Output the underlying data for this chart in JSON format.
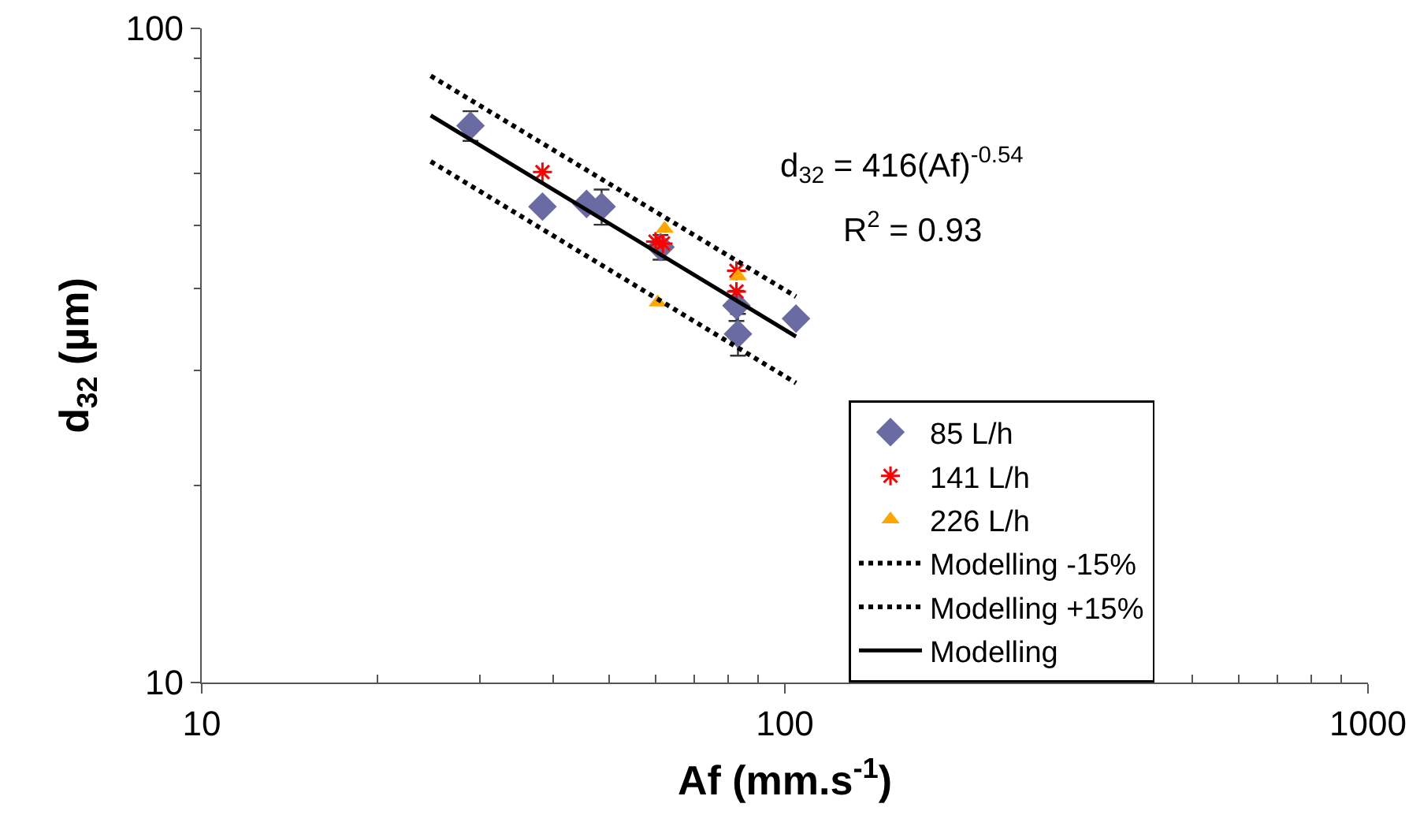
{
  "chart_data": {
    "type": "scatter",
    "xlabel": "Af (mm.s$^{-1}$)",
    "ylabel": "d$_{32}$ (µm)",
    "log": "xy",
    "xlim": [
      10,
      1000
    ],
    "ylim": [
      10,
      100
    ],
    "xticks": [
      10,
      100,
      1000
    ],
    "yticks": [
      10,
      100
    ],
    "legend": "bottom right",
    "annotations": [
      "d$_{32}$ = 416(Af)$^{-0.54}$",
      "R$^{2}$ = 0.93"
    ],
    "series": [
      {
        "name": "85 L/h",
        "marker": "diamond",
        "color": "#6b6ba3",
        "x": [
          28.9,
          38.4,
          45.7,
          48.5,
          61.2,
          82.6,
          83.1,
          104.5
        ],
        "values": [
          71.0,
          53.4,
          53.9,
          53.4,
          46.3,
          37.7,
          34.1,
          36.0
        ],
        "errors": [
          3.7,
          null,
          null,
          3.3,
          2,
          2,
          2.5,
          null
        ]
      },
      {
        "name": "141 L/h",
        "marker": "cross",
        "color": "#ff0000",
        "x": [
          38.4,
          60.0,
          61.8,
          82.6,
          82.6
        ],
        "values": [
          60.3,
          47.2,
          46.9,
          42.6,
          39.6
        ]
      },
      {
        "name": "226 L/h",
        "marker": "triangle",
        "color": "#ffa500",
        "x": [
          62.2,
          60.5,
          83.1
        ],
        "values": [
          49.4,
          38.1,
          41.8
        ]
      },
      {
        "name": "Modelling -15%",
        "type": "line",
        "line_style": "dotted",
        "color": "#000000",
        "x": [
          24.7,
          104.5
        ],
        "values": [
          62.6,
          28.7
        ]
      },
      {
        "name": "Modelling +15%",
        "type": "line",
        "line_style": "dotted",
        "color": "#000000",
        "x": [
          24.7,
          104.5
        ],
        "values": [
          84.6,
          38.9
        ]
      },
      {
        "name": "Modelling",
        "type": "line",
        "line_style": "solid",
        "color": "#000000",
        "x": [
          24.7,
          104.5
        ],
        "values": [
          73.6,
          33.8
        ]
      }
    ]
  }
}
